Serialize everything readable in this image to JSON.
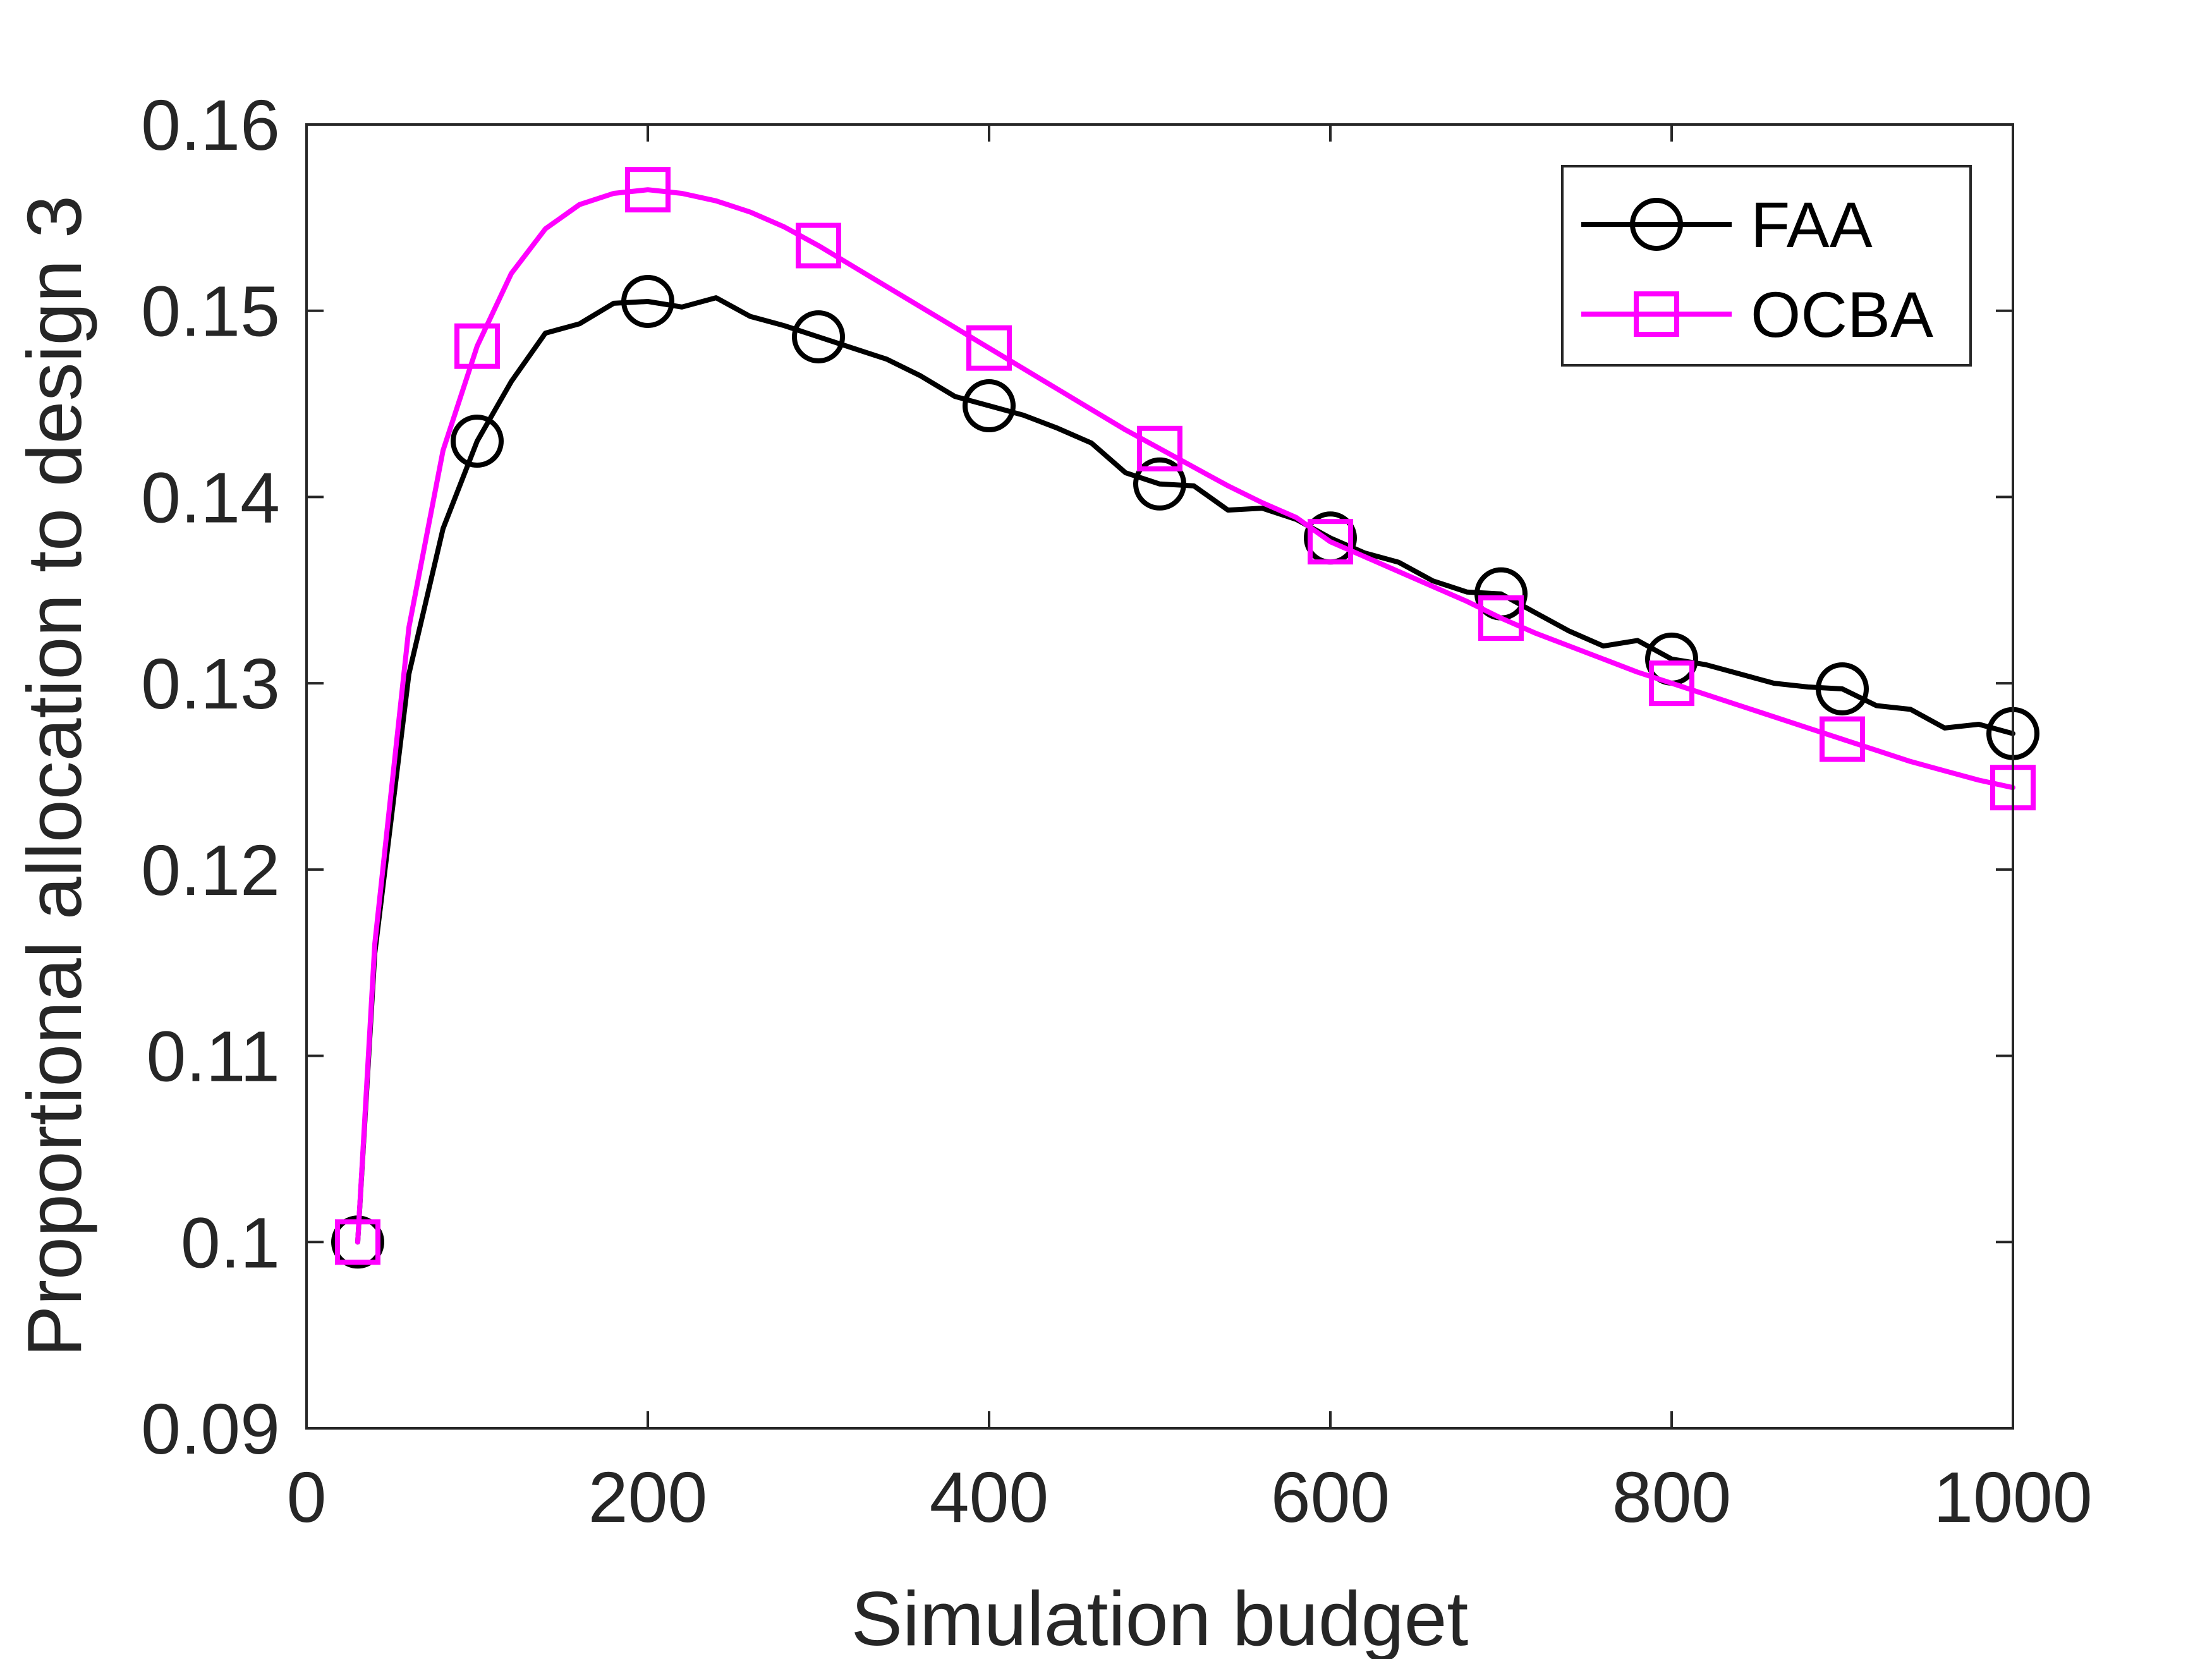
{
  "chart_data": {
    "type": "line",
    "title": "",
    "xlabel": "Simulation budget",
    "ylabel": "Proportional allocation to design 3",
    "xlim": [
      0,
      1000
    ],
    "ylim": [
      0.09,
      0.16
    ],
    "xticks": [
      0,
      200,
      400,
      600,
      800,
      1000
    ],
    "xtick_labels": [
      "0",
      "200",
      "400",
      "600",
      "800",
      "1000"
    ],
    "yticks": [
      0.09,
      0.1,
      0.11,
      0.12,
      0.13,
      0.14,
      0.15,
      0.16
    ],
    "ytick_labels": [
      "0.09",
      "0.1",
      "0.11",
      "0.12",
      "0.13",
      "0.14",
      "0.15",
      "0.16"
    ],
    "grid": false,
    "legend_position": "top-right",
    "series": [
      {
        "name": "FAA",
        "color": "#000000",
        "marker": "circle",
        "x": [
          30,
          40,
          60,
          80,
          100,
          120,
          140,
          160,
          180,
          200,
          220,
          240,
          260,
          280,
          300,
          320,
          340,
          360,
          380,
          400,
          420,
          440,
          460,
          480,
          500,
          520,
          540,
          560,
          580,
          600,
          620,
          640,
          660,
          680,
          700,
          720,
          740,
          760,
          780,
          800,
          820,
          840,
          860,
          880,
          900,
          920,
          940,
          960,
          980,
          1000
        ],
        "y": [
          0.1,
          0.1155,
          0.1305,
          0.1383,
          0.143,
          0.1462,
          0.1488,
          0.1493,
          0.1504,
          0.1505,
          0.1502,
          0.1507,
          0.1497,
          0.1492,
          0.1486,
          0.148,
          0.1474,
          0.1465,
          0.1454,
          0.1449,
          0.1444,
          0.1437,
          0.1429,
          0.1413,
          0.1407,
          0.1406,
          0.1393,
          0.1394,
          0.1388,
          0.1378,
          0.137,
          0.1365,
          0.1355,
          0.1349,
          0.1348,
          0.1338,
          0.1328,
          0.132,
          0.1323,
          0.1313,
          0.131,
          0.1305,
          0.13,
          0.1298,
          0.1297,
          0.1288,
          0.1286,
          0.1276,
          0.1278,
          0.1273
        ],
        "marker_x": [
          30,
          100,
          200,
          300,
          400,
          500,
          600,
          700,
          800,
          900,
          1000
        ],
        "marker_y": [
          0.1,
          0.143,
          0.1505,
          0.1486,
          0.1449,
          0.1407,
          0.1378,
          0.1348,
          0.1313,
          0.1297,
          0.1273
        ]
      },
      {
        "name": "OCBA",
        "color": "#ff00ff",
        "marker": "square",
        "x": [
          30,
          40,
          60,
          80,
          100,
          120,
          140,
          160,
          180,
          200,
          220,
          240,
          260,
          280,
          300,
          320,
          340,
          360,
          380,
          400,
          420,
          440,
          460,
          480,
          500,
          520,
          540,
          560,
          580,
          600,
          620,
          640,
          660,
          680,
          700,
          720,
          740,
          760,
          780,
          800,
          820,
          840,
          860,
          880,
          900,
          920,
          940,
          960,
          980,
          1000
        ],
        "y": [
          0.1,
          0.116,
          0.133,
          0.1425,
          0.1481,
          0.152,
          0.1544,
          0.1557,
          0.1563,
          0.1565,
          0.1563,
          0.1559,
          0.1553,
          0.1545,
          0.1535,
          0.1524,
          0.1513,
          0.1502,
          0.1491,
          0.148,
          0.1469,
          0.1458,
          0.1447,
          0.1436,
          0.1426,
          0.1416,
          0.1406,
          0.1397,
          0.1389,
          0.1376,
          0.1368,
          0.136,
          0.1352,
          0.1344,
          0.1335,
          0.1327,
          0.132,
          0.1313,
          0.1306,
          0.13,
          0.1294,
          0.1288,
          0.1282,
          0.1276,
          0.127,
          0.1264,
          0.1258,
          0.1253,
          0.1248,
          0.1244
        ],
        "marker_x": [
          30,
          100,
          200,
          300,
          400,
          500,
          600,
          700,
          800,
          900,
          1000
        ],
        "marker_y": [
          0.1,
          0.1481,
          0.1565,
          0.1535,
          0.148,
          0.1426,
          0.1376,
          0.1335,
          0.13,
          0.127,
          0.1244
        ]
      }
    ]
  }
}
